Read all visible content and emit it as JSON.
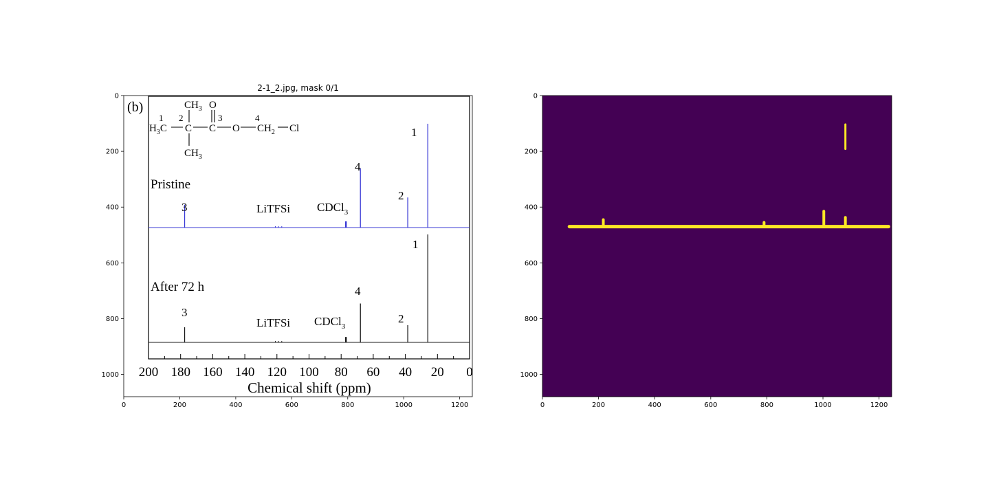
{
  "figure": {
    "title": "2-1_2.jpg, mask 0/1"
  },
  "chart_data": [
    {
      "type": "line",
      "name": "left-image-panel",
      "xlim": [
        0,
        1245
      ],
      "ylim": [
        1080,
        0
      ],
      "x_ticks": [
        0,
        200,
        400,
        600,
        800,
        1000,
        1200
      ],
      "y_ticks": [
        0,
        200,
        400,
        600,
        800,
        1000
      ],
      "embedded_figure": {
        "panel_label": "(b)",
        "molecule": {
          "num_1": "1",
          "num_2": "2",
          "num_3": "3",
          "num_4": "4",
          "ch3_top": "CH",
          "ch3_bottom": "CH",
          "sub3": "3",
          "o_top": "O",
          "h3c": "H",
          "h3c_c": "C",
          "c_center": "C",
          "c_carbonyl": "C",
          "o_link": "O",
          "ch2": "CH",
          "sub2": "2",
          "cl": "Cl"
        },
        "spectra_labels": {
          "pristine": "Pristine",
          "after": "After 72 h",
          "litfsi": "LiTFSi",
          "cdcl": "CDCl",
          "cdcl_sub": "3",
          "peak_1": "1",
          "peak_2": "2",
          "peak_3": "3",
          "peak_4": "4"
        },
        "xlabel": "Chemical shift (ppm)",
        "x_ticks": [
          200,
          180,
          160,
          140,
          120,
          100,
          80,
          60,
          40,
          20,
          0
        ],
        "xlim": [
          200,
          0
        ],
        "series": [
          {
            "name": "Pristine",
            "color": "#3b3bd6",
            "peaks": [
              {
                "ppm": 177.5,
                "height": 0.22
              },
              {
                "ppm": 77.0,
                "height": 0.06
              },
              {
                "ppm": 68.0,
                "height": 0.57
              },
              {
                "ppm": 38.5,
                "height": 0.29
              },
              {
                "ppm": 26.0,
                "height": 1.0
              }
            ]
          },
          {
            "name": "After 72 h",
            "color": "#1a1a1a",
            "peaks": [
              {
                "ppm": 177.5,
                "height": 0.14
              },
              {
                "ppm": 77.0,
                "height": 0.05
              },
              {
                "ppm": 68.0,
                "height": 0.36
              },
              {
                "ppm": 38.5,
                "height": 0.16
              },
              {
                "ppm": 26.0,
                "height": 1.0
              }
            ]
          }
        ]
      }
    },
    {
      "type": "heatmap",
      "name": "right-mask-panel",
      "xlim": [
        0,
        1245
      ],
      "ylim": [
        1080,
        0
      ],
      "x_ticks": [
        0,
        200,
        400,
        600,
        800,
        1000,
        1200
      ],
      "y_ticks": [
        0,
        200,
        400,
        600,
        800,
        1000
      ],
      "background_color": "#440154",
      "mask_color": "#fde725",
      "mask_band": {
        "x_start": 90,
        "x_end": 1240,
        "y": 470
      },
      "mask_bumps": [
        {
          "x": 217,
          "y_top": 440
        },
        {
          "x": 790,
          "y_top": 450
        },
        {
          "x": 1003,
          "y_top": 410
        },
        {
          "x": 1080,
          "y_top": 432
        }
      ],
      "mask_streak": {
        "x": 1080,
        "y_top": 100,
        "y_bottom": 195
      }
    }
  ]
}
